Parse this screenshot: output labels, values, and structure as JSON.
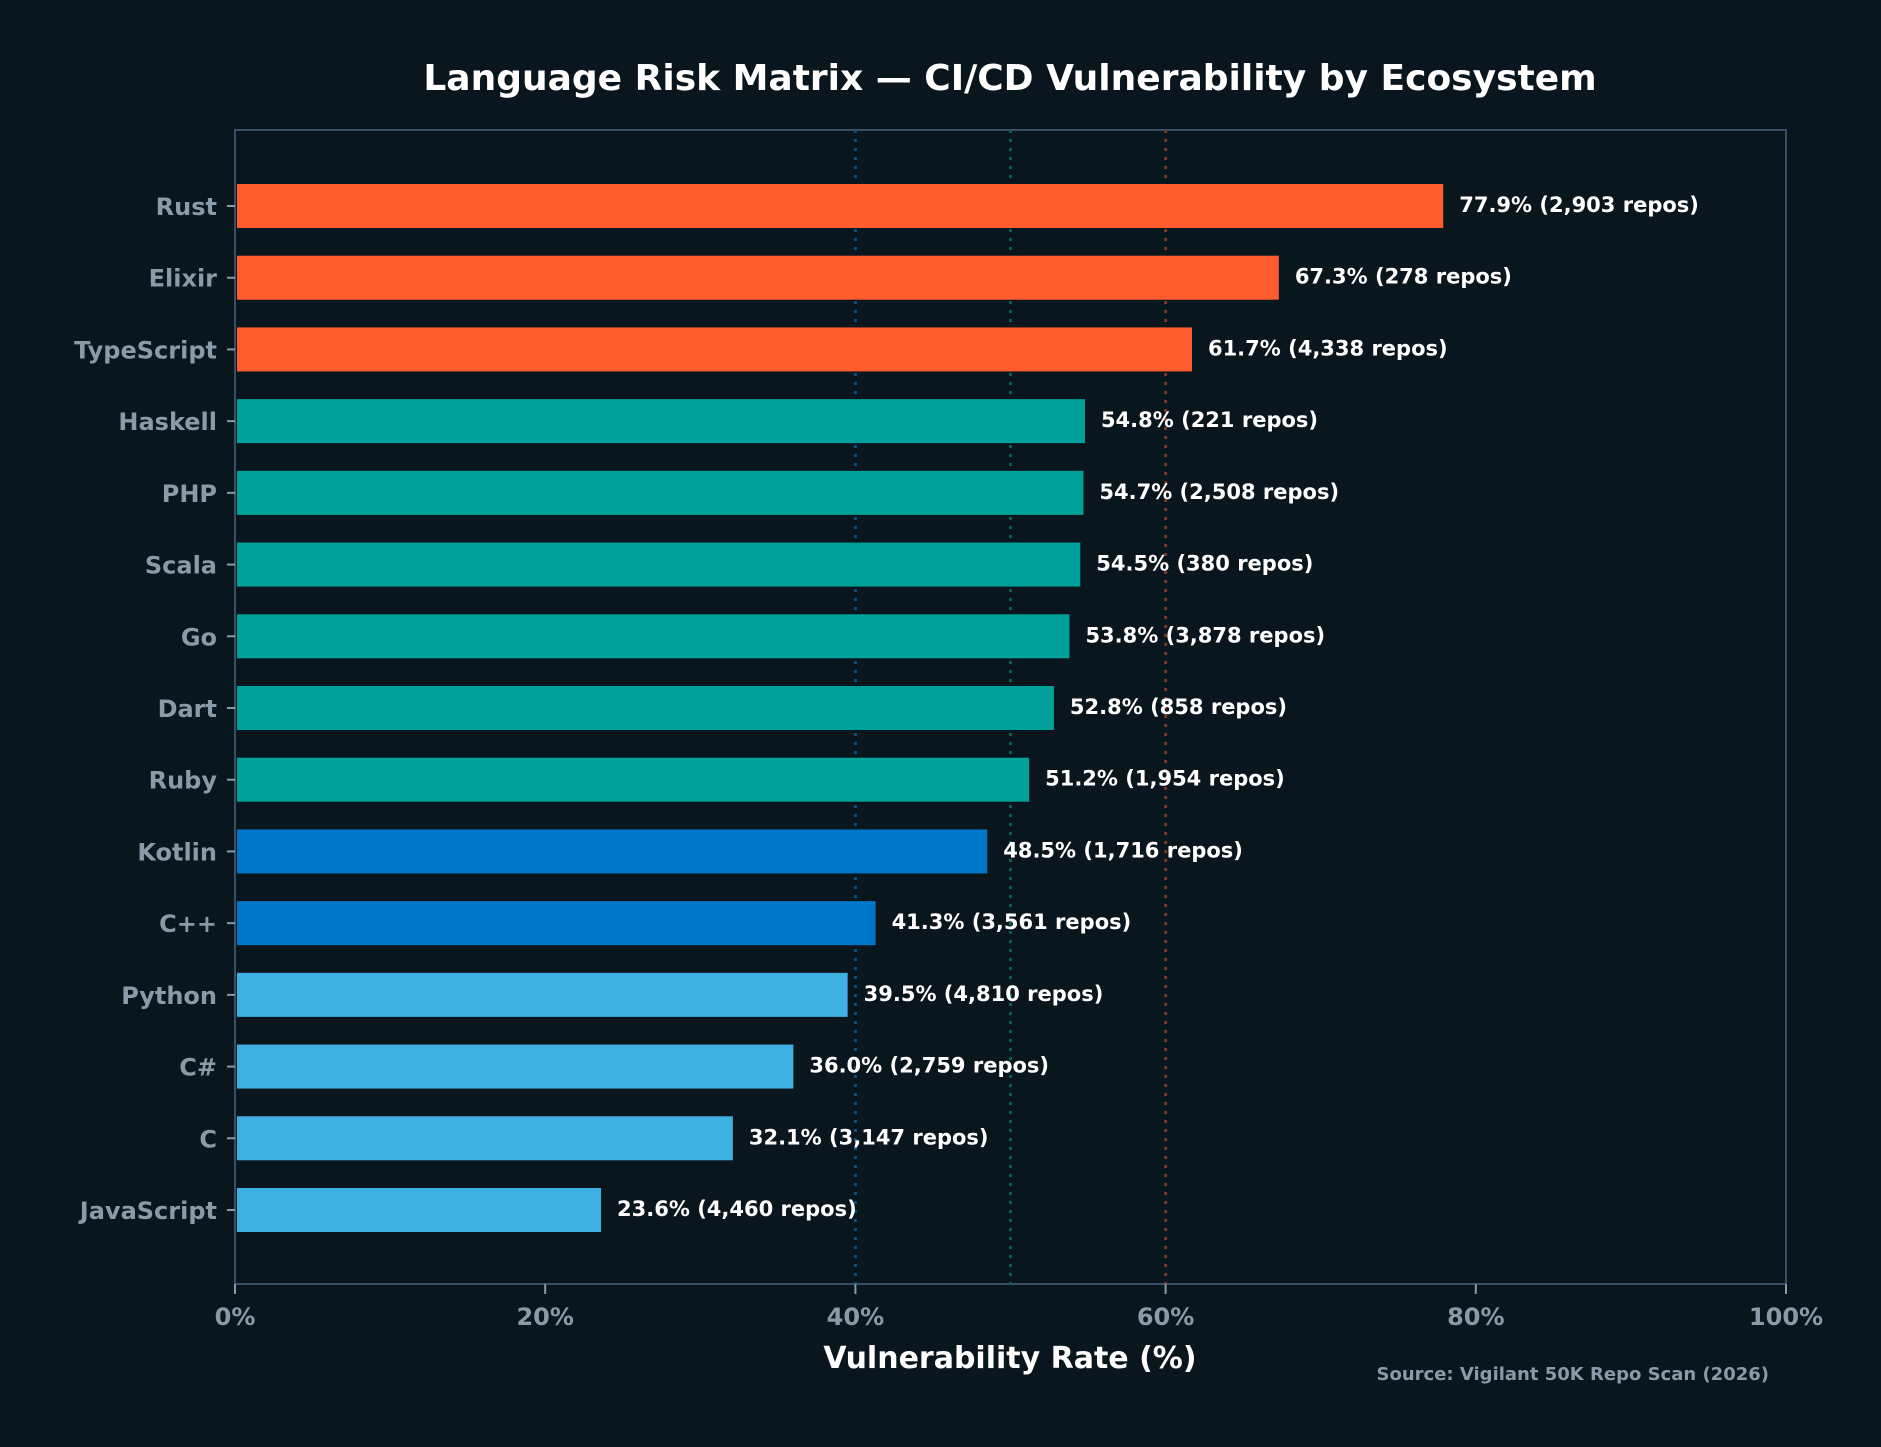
{
  "chart_data": {
    "type": "bar",
    "orientation": "horizontal",
    "title": "Language Risk Matrix — CI/CD Vulnerability by Ecosystem",
    "xlabel": "Vulnerability Rate (%)",
    "ylabel": "",
    "xlim": [
      0,
      100
    ],
    "xticks": [
      "0%",
      "20%",
      "40%",
      "60%",
      "80%",
      "100%"
    ],
    "grid": false,
    "reference_lines": [
      {
        "x": 40,
        "color": "#0b4f7a"
      },
      {
        "x": 50,
        "color": "#0b5b57"
      },
      {
        "x": 60,
        "color": "#7a3526"
      }
    ],
    "source": "Source: Vigilant 50K Repo Scan (2026)",
    "bars": [
      {
        "category": "Rust",
        "value": 77.9,
        "label": "77.9%  (2,903 repos)",
        "color": "#ff5c2e"
      },
      {
        "category": "Elixir",
        "value": 67.3,
        "label": "67.3%  (278 repos)",
        "color": "#ff5c2e"
      },
      {
        "category": "TypeScript",
        "value": 61.7,
        "label": "61.7%  (4,338 repos)",
        "color": "#ff5c2e"
      },
      {
        "category": "Haskell",
        "value": 54.8,
        "label": "54.8%  (221 repos)",
        "color": "#00a19a"
      },
      {
        "category": "PHP",
        "value": 54.7,
        "label": "54.7%  (2,508 repos)",
        "color": "#00a19a"
      },
      {
        "category": "Scala",
        "value": 54.5,
        "label": "54.5%  (380 repos)",
        "color": "#00a19a"
      },
      {
        "category": "Go",
        "value": 53.8,
        "label": "53.8%  (3,878 repos)",
        "color": "#00a19a"
      },
      {
        "category": "Dart",
        "value": 52.8,
        "label": "52.8%  (858 repos)",
        "color": "#00a19a"
      },
      {
        "category": "Ruby",
        "value": 51.2,
        "label": "51.2%  (1,954 repos)",
        "color": "#00a19a"
      },
      {
        "category": "Kotlin",
        "value": 48.5,
        "label": "48.5%  (1,716 repos)",
        "color": "#0077c8"
      },
      {
        "category": "C++",
        "value": 41.3,
        "label": "41.3%  (3,561 repos)",
        "color": "#0077c8"
      },
      {
        "category": "Python",
        "value": 39.5,
        "label": "39.5%  (4,810 repos)",
        "color": "#3eb1e3"
      },
      {
        "category": "C#",
        "value": 36.0,
        "label": "36.0%  (2,759 repos)",
        "color": "#3eb1e3"
      },
      {
        "category": "C",
        "value": 32.1,
        "label": "32.1%  (3,147 repos)",
        "color": "#3eb1e3"
      },
      {
        "category": "JavaScript",
        "value": 23.6,
        "label": "23.6%  (4,460 repos)",
        "color": "#3eb1e3"
      }
    ]
  }
}
